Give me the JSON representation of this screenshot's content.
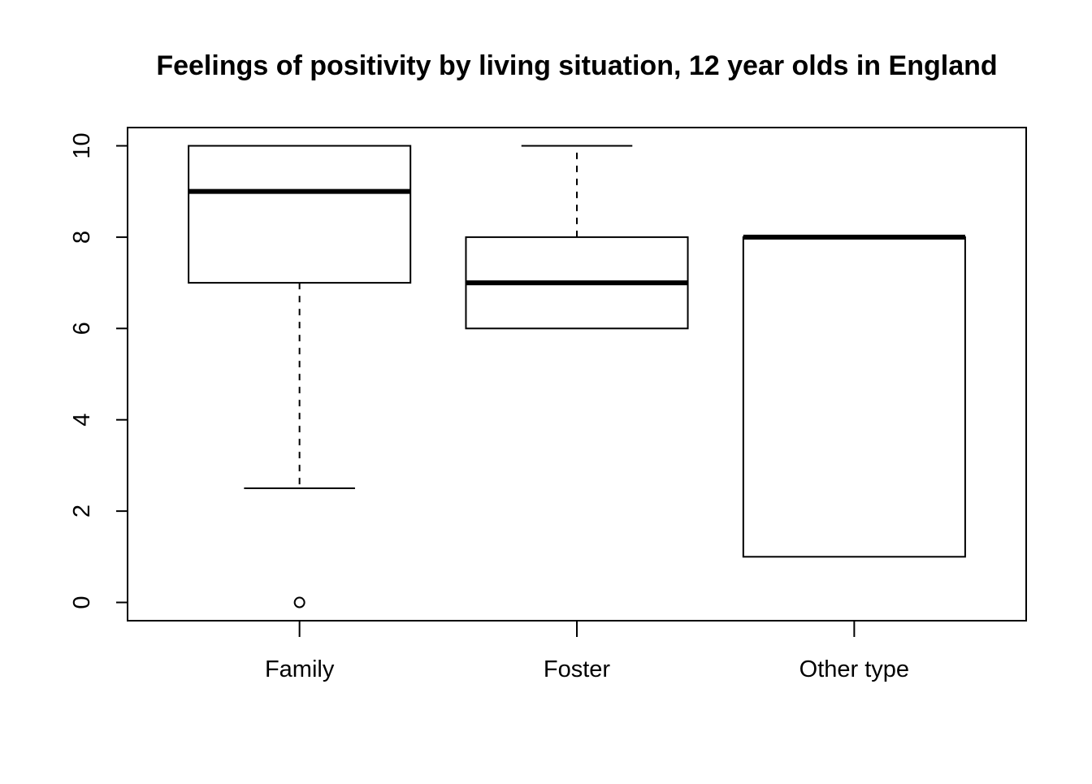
{
  "chart_data": {
    "type": "boxplot",
    "title": "Feelings of positivity by living situation, 12 year olds in England",
    "xlabel": "",
    "ylabel": "",
    "ylim": [
      -0.4,
      10.4
    ],
    "yticks": [
      0,
      2,
      4,
      6,
      8,
      10
    ],
    "categories": [
      "Family",
      "Foster",
      "Other type"
    ],
    "boxes": [
      {
        "category": "Family",
        "whisker_low": 2.5,
        "q1": 7,
        "median": 9,
        "q3": 10,
        "whisker_high": 10,
        "outliers": [
          0
        ]
      },
      {
        "category": "Foster",
        "whisker_low": 6,
        "q1": 6,
        "median": 7,
        "q3": 8,
        "whisker_high": 10,
        "outliers": []
      },
      {
        "category": "Other type",
        "whisker_low": 1,
        "q1": 1,
        "median": 8,
        "q3": 8,
        "whisker_high": 8,
        "outliers": []
      }
    ],
    "grid": false,
    "legend": "none",
    "colors": {
      "box_fill": "#ffffff",
      "stroke": "#000000"
    }
  }
}
